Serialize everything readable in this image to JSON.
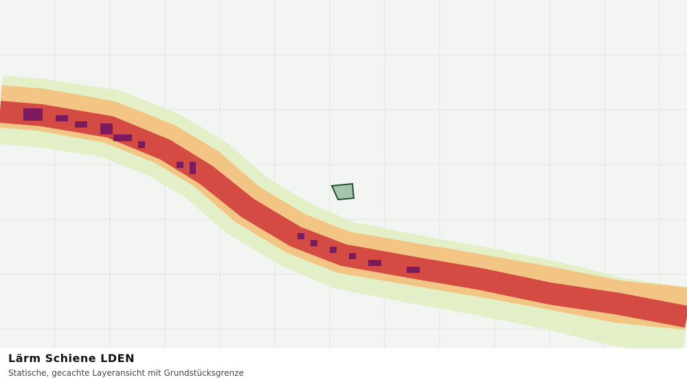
{
  "panel": {
    "title": "Lärm Schiene LDEN",
    "subtitle": "Statische, gecachte Layeransicht mit Grundstücksgrenze"
  }
}
